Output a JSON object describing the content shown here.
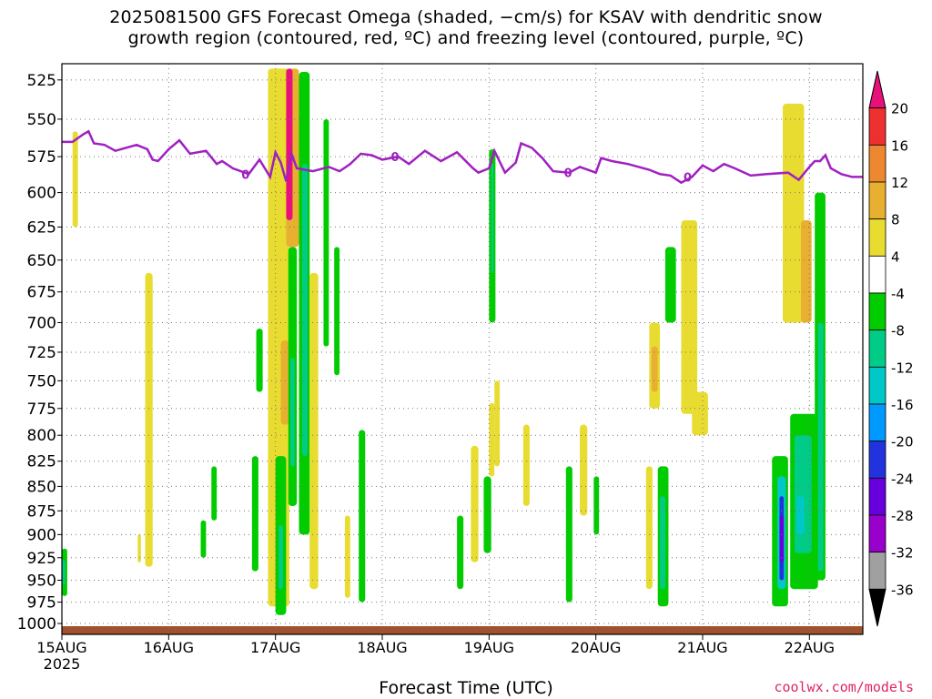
{
  "title_line1": "2025081500 GFS Forecast Omega (shaded, −cm/s) for KSAV with dendritic snow",
  "title_line2": "growth region (contoured, red, ºC) and freezing level (contoured, purple, ºC)",
  "xlabel": "Forecast Time (UTC)",
  "credit": "coolwx.com/models",
  "chart_data": {
    "type": "heatmap",
    "title": "2025081500 GFS Forecast Omega (shaded, −cm/s) for KSAV with dendritic snow growth region (contoured, red, ºC) and freezing level (contoured, purple, ºC)",
    "xlabel": "Forecast Time (UTC)",
    "ylabel": "",
    "x_ticks": [
      "15AUG",
      "16AUG",
      "17AUG",
      "18AUG",
      "19AUG",
      "20AUG",
      "21AUG",
      "22AUG"
    ],
    "x_year": "2025",
    "xlim_days": [
      0,
      7.5
    ],
    "y_ticks": [
      525,
      550,
      575,
      600,
      625,
      650,
      675,
      700,
      725,
      750,
      775,
      800,
      825,
      850,
      875,
      900,
      925,
      950,
      975,
      1000
    ],
    "ylim": [
      515,
      1013
    ],
    "y_scale": "log-pressure",
    "grid": true,
    "colorbar": {
      "levels": [
        "-36",
        "-32",
        "-28",
        "-24",
        "-20",
        "-16",
        "-12",
        "-8",
        "-4",
        "4",
        "8",
        "12",
        "16",
        "20"
      ],
      "colors": [
        "#000000",
        "#a0a0a0",
        "#9900cc",
        "#6600dd",
        "#2233dd",
        "#0099ff",
        "#00c8c8",
        "#00cc88",
        "#00cc00",
        "#ffffff",
        "#e8dc30",
        "#e8b030",
        "#ee8830",
        "#ee3030",
        "#e8107a"
      ]
    },
    "freezing_level_label": "0",
    "freezing_level_hpa": [
      [
        0,
        565
      ],
      [
        0.1,
        565
      ],
      [
        0.2,
        560
      ],
      [
        0.25,
        558
      ],
      [
        0.3,
        566
      ],
      [
        0.4,
        567
      ],
      [
        0.5,
        571
      ],
      [
        0.6,
        569
      ],
      [
        0.7,
        567
      ],
      [
        0.8,
        570
      ],
      [
        0.85,
        577
      ],
      [
        0.9,
        578
      ],
      [
        1.0,
        570
      ],
      [
        1.1,
        564
      ],
      [
        1.2,
        573
      ],
      [
        1.35,
        571
      ],
      [
        1.45,
        580
      ],
      [
        1.5,
        578
      ],
      [
        1.6,
        583
      ],
      [
        1.75,
        587
      ],
      [
        1.85,
        577
      ],
      [
        1.95,
        589
      ],
      [
        2.0,
        572
      ],
      [
        2.05,
        579
      ],
      [
        2.1,
        592
      ],
      [
        2.15,
        573
      ],
      [
        2.2,
        583
      ],
      [
        2.35,
        585
      ],
      [
        2.5,
        582
      ],
      [
        2.6,
        585
      ],
      [
        2.7,
        580
      ],
      [
        2.8,
        573
      ],
      [
        2.9,
        574
      ],
      [
        3.0,
        577
      ],
      [
        3.15,
        575
      ],
      [
        3.25,
        580
      ],
      [
        3.4,
        571
      ],
      [
        3.55,
        578
      ],
      [
        3.7,
        572
      ],
      [
        3.85,
        583
      ],
      [
        3.9,
        586
      ],
      [
        4.0,
        583
      ],
      [
        4.05,
        571
      ],
      [
        4.15,
        586
      ],
      [
        4.25,
        579
      ],
      [
        4.3,
        566
      ],
      [
        4.4,
        569
      ],
      [
        4.5,
        576
      ],
      [
        4.6,
        585
      ],
      [
        4.75,
        586
      ],
      [
        4.85,
        582
      ],
      [
        5.0,
        586
      ],
      [
        5.05,
        576
      ],
      [
        5.15,
        578
      ],
      [
        5.3,
        580
      ],
      [
        5.5,
        584
      ],
      [
        5.6,
        587
      ],
      [
        5.7,
        588
      ],
      [
        5.8,
        593
      ],
      [
        5.9,
        589
      ],
      [
        6.0,
        581
      ],
      [
        6.1,
        585
      ],
      [
        6.2,
        580
      ],
      [
        6.3,
        583
      ],
      [
        6.45,
        588
      ],
      [
        6.6,
        587
      ],
      [
        6.8,
        586
      ],
      [
        6.9,
        591
      ],
      [
        7.0,
        582
      ],
      [
        7.05,
        578
      ],
      [
        7.1,
        578
      ],
      [
        7.15,
        574
      ],
      [
        7.2,
        583
      ],
      [
        7.3,
        587
      ],
      [
        7.4,
        589
      ],
      [
        7.5,
        589
      ]
    ],
    "shaded_regions_omega": [
      {
        "t": [
          0.0,
          0.05
        ],
        "p": [
          915,
          968
        ],
        "v": -8
      },
      {
        "t": [
          0.0,
          0.03
        ],
        "p": [
          928,
          955
        ],
        "v": -12
      },
      {
        "t": [
          0.1,
          0.15
        ],
        "p": [
          558,
          625
        ],
        "v": 4
      },
      {
        "t": [
          0.78,
          0.85
        ],
        "p": [
          660,
          935
        ],
        "v": 4
      },
      {
        "t": [
          0.71,
          0.74
        ],
        "p": [
          900,
          930
        ],
        "v": 4
      },
      {
        "t": [
          1.3,
          1.35
        ],
        "p": [
          885,
          925
        ],
        "v": -8
      },
      {
        "t": [
          1.4,
          1.45
        ],
        "p": [
          830,
          885
        ],
        "v": -8
      },
      {
        "t": [
          1.78,
          1.84
        ],
        "p": [
          820,
          940
        ],
        "v": -8
      },
      {
        "t": [
          1.82,
          1.88
        ],
        "p": [
          705,
          760
        ],
        "v": -8
      },
      {
        "t": [
          1.93,
          2.13
        ],
        "p": [
          518,
          980
        ],
        "v": 4
      },
      {
        "t": [
          2.05,
          2.13
        ],
        "p": [
          715,
          790
        ],
        "v": 8
      },
      {
        "t": [
          2.1,
          2.22
        ],
        "p": [
          518,
          640
        ],
        "v": 8
      },
      {
        "t": [
          2.1,
          2.16
        ],
        "p": [
          518,
          620
        ],
        "v": 20
      },
      {
        "t": [
          2.12,
          2.2
        ],
        "p": [
          640,
          870
        ],
        "v": -8
      },
      {
        "t": [
          2.14,
          2.18
        ],
        "p": [
          730,
          830
        ],
        "v": -12
      },
      {
        "t": [
          2.0,
          2.1
        ],
        "p": [
          820,
          990
        ],
        "v": -8
      },
      {
        "t": [
          2.03,
          2.07
        ],
        "p": [
          890,
          960
        ],
        "v": -12
      },
      {
        "t": [
          2.22,
          2.32
        ],
        "p": [
          520,
          900
        ],
        "v": -8
      },
      {
        "t": [
          2.25,
          2.3
        ],
        "p": [
          580,
          820
        ],
        "v": -12
      },
      {
        "t": [
          2.32,
          2.4
        ],
        "p": [
          660,
          960
        ],
        "v": 4
      },
      {
        "t": [
          2.45,
          2.5
        ],
        "p": [
          550,
          720
        ],
        "v": -8
      },
      {
        "t": [
          2.55,
          2.6
        ],
        "p": [
          640,
          745
        ],
        "v": -8
      },
      {
        "t": [
          2.65,
          2.7
        ],
        "p": [
          880,
          970
        ],
        "v": 4
      },
      {
        "t": [
          2.78,
          2.84
        ],
        "p": [
          795,
          975
        ],
        "v": -8
      },
      {
        "t": [
          3.7,
          3.76
        ],
        "p": [
          880,
          960
        ],
        "v": -8
      },
      {
        "t": [
          3.83,
          3.9
        ],
        "p": [
          810,
          930
        ],
        "v": 4
      },
      {
        "t": [
          3.95,
          4.02
        ],
        "p": [
          840,
          920
        ],
        "v": -8
      },
      {
        "t": [
          4.0,
          4.05
        ],
        "p": [
          770,
          840
        ],
        "v": 4
      },
      {
        "t": [
          4.0,
          4.06
        ],
        "p": [
          570,
          700
        ],
        "v": -8
      },
      {
        "t": [
          4.02,
          4.04
        ],
        "p": [
          580,
          660
        ],
        "v": -12
      },
      {
        "t": [
          4.05,
          4.1
        ],
        "p": [
          750,
          830
        ],
        "v": 4
      },
      {
        "t": [
          4.32,
          4.38
        ],
        "p": [
          790,
          870
        ],
        "v": 4
      },
      {
        "t": [
          4.72,
          4.78
        ],
        "p": [
          830,
          975
        ],
        "v": -8
      },
      {
        "t": [
          4.85,
          4.92
        ],
        "p": [
          790,
          880
        ],
        "v": 4
      },
      {
        "t": [
          4.98,
          5.03
        ],
        "p": [
          840,
          900
        ],
        "v": -8
      },
      {
        "t": [
          5.5,
          5.6
        ],
        "p": [
          700,
          775
        ],
        "v": 4
      },
      {
        "t": [
          5.52,
          5.58
        ],
        "p": [
          720,
          760
        ],
        "v": 8
      },
      {
        "t": [
          5.65,
          5.75
        ],
        "p": [
          640,
          700
        ],
        "v": -8
      },
      {
        "t": [
          5.58,
          5.68
        ],
        "p": [
          830,
          980
        ],
        "v": -8
      },
      {
        "t": [
          5.6,
          5.65
        ],
        "p": [
          860,
          960
        ],
        "v": -12
      },
      {
        "t": [
          5.47,
          5.53
        ],
        "p": [
          830,
          960
        ],
        "v": 4
      },
      {
        "t": [
          5.8,
          5.95
        ],
        "p": [
          620,
          780
        ],
        "v": 4
      },
      {
        "t": [
          5.9,
          6.05
        ],
        "p": [
          760,
          800
        ],
        "v": 4
      },
      {
        "t": [
          6.75,
          6.95
        ],
        "p": [
          540,
          700
        ],
        "v": 4
      },
      {
        "t": [
          6.92,
          7.02
        ],
        "p": [
          620,
          700
        ],
        "v": 8
      },
      {
        "t": [
          6.65,
          6.8
        ],
        "p": [
          820,
          980
        ],
        "v": -8
      },
      {
        "t": [
          6.7,
          6.78
        ],
        "p": [
          840,
          960
        ],
        "v": -16
      },
      {
        "t": [
          6.72,
          6.76
        ],
        "p": [
          860,
          950
        ],
        "v": -24
      },
      {
        "t": [
          6.72,
          6.76
        ],
        "p": [
          880,
          930
        ],
        "v": -28
      },
      {
        "t": [
          6.82,
          7.08
        ],
        "p": [
          780,
          960
        ],
        "v": -8
      },
      {
        "t": [
          6.86,
          7.02
        ],
        "p": [
          800,
          920
        ],
        "v": -12
      },
      {
        "t": [
          6.88,
          6.95
        ],
        "p": [
          860,
          900
        ],
        "v": -16
      },
      {
        "t": [
          7.05,
          7.15
        ],
        "p": [
          600,
          950
        ],
        "v": -8
      },
      {
        "t": [
          7.08,
          7.13
        ],
        "p": [
          700,
          940
        ],
        "v": -12
      }
    ]
  }
}
